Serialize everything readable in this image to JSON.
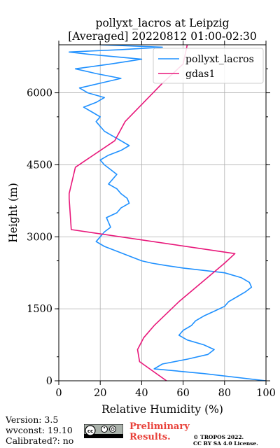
{
  "chart_data": {
    "type": "line",
    "title": [
      "pollyxt_lacros at Leipzig",
      "[Averaged] 20220812 01:00-02:30"
    ],
    "xlabel": "Relative Humidity (%)",
    "ylabel": "Height (m)",
    "xlim": [
      0,
      100
    ],
    "ylim": [
      0,
      7000
    ],
    "xticks": [
      0,
      20,
      40,
      60,
      80,
      100
    ],
    "yticks": [
      0,
      1500,
      3000,
      4500,
      6000
    ],
    "grid": true,
    "legend_position": "top-right",
    "series": [
      {
        "name": "pollyxt_lacros",
        "color": "#1e90ff",
        "x": [
          100,
          70,
          46,
          50,
          62,
          72,
          75,
          70,
          62,
          58,
          60,
          64,
          66,
          70,
          75,
          80,
          82,
          86,
          90,
          93,
          92,
          88,
          80,
          70,
          60,
          52,
          45,
          40,
          34,
          28,
          22,
          18,
          20,
          22,
          25,
          24,
          23,
          28,
          30,
          34,
          33,
          30,
          28,
          24,
          26,
          28,
          25,
          22,
          20,
          24,
          30,
          34,
          30,
          26,
          22,
          20,
          18,
          20,
          16,
          12,
          18,
          22,
          14,
          10,
          20,
          30,
          18,
          8,
          25,
          40,
          15,
          5,
          30,
          50,
          20
        ],
        "y": [
          0,
          150,
          250,
          350,
          450,
          550,
          650,
          750,
          850,
          950,
          1050,
          1150,
          1250,
          1350,
          1450,
          1550,
          1650,
          1750,
          1850,
          1950,
          2050,
          2150,
          2250,
          2300,
          2350,
          2400,
          2450,
          2500,
          2600,
          2700,
          2800,
          2900,
          3000,
          3100,
          3200,
          3300,
          3400,
          3500,
          3600,
          3700,
          3800,
          3900,
          4000,
          4100,
          4200,
          4300,
          4400,
          4500,
          4600,
          4700,
          4800,
          4900,
          5000,
          5100,
          5200,
          5300,
          5400,
          5500,
          5600,
          5700,
          5800,
          5900,
          6000,
          6100,
          6200,
          6300,
          6400,
          6500,
          6600,
          6700,
          6800,
          6850,
          6900,
          6950,
          7000
        ]
      },
      {
        "name": "gdas1",
        "color": "#e8177a",
        "x": [
          52,
          39,
          38,
          41,
          46,
          58,
          80,
          85,
          6,
          5,
          5,
          8,
          27,
          32,
          50,
          60,
          62
        ],
        "y": [
          0,
          400,
          650,
          900,
          1150,
          1650,
          2450,
          2650,
          3150,
          3800,
          3900,
          4450,
          5000,
          5400,
          6200,
          6600,
          7000
        ]
      }
    ]
  },
  "footer": {
    "version": "Version: 3.5",
    "wvconst": "wvconst:  19.10",
    "calibrated": "Calibrated?: no",
    "preliminary_1": "Preliminary",
    "preliminary_2": "Results.",
    "copyright_1": "© TROPOS 2022.",
    "copyright_2": "CC BY SA 4.0 License."
  }
}
